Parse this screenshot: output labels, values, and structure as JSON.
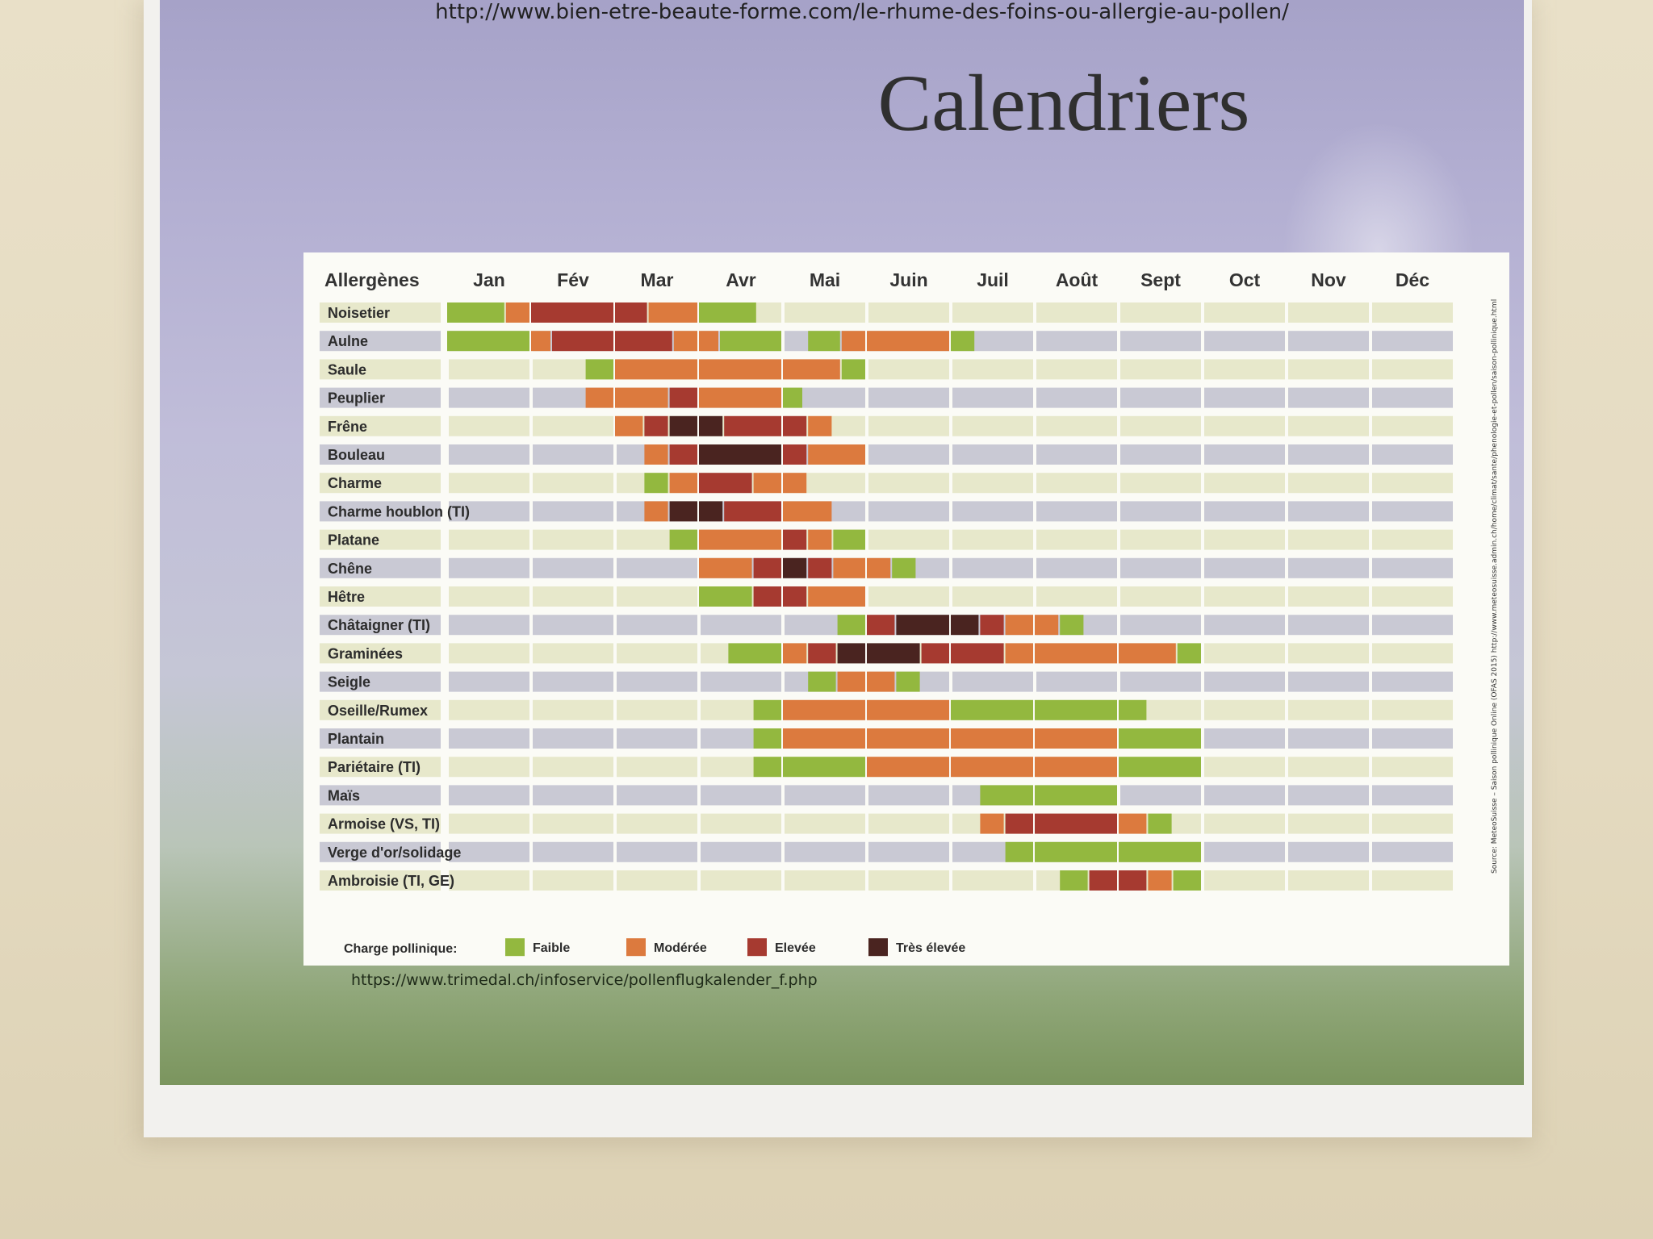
{
  "poster": {
    "source_top": "http://www.bien-etre-beaute-forme.com/le-rhume-des-foins-ou-allergie-au-pollen/",
    "title": "Calendriers",
    "source_bottom": "https://www.trimedal.ch/infoservice/pollenflugkalender_f.php",
    "side_note": "Source: MeteoSuisse – Saison pollinique Online (OFAS 2015) http://www.meteosuisse.admin.ch/home/climat/sante/phenologie-et-pollen/saison-pollinique.html"
  },
  "colors": {
    "faible": "#93b83f",
    "moderee": "#dc7a3e",
    "elevee": "#a63a30",
    "tres_elevee": "#4a2420",
    "row_light": "#e7e8cb",
    "row_grey": "#c9c9d4"
  },
  "chart_data": {
    "type": "table",
    "corner_label": "Allergènes",
    "months": [
      "Jan",
      "Fév",
      "Mar",
      "Avr",
      "Mai",
      "Juin",
      "Juil",
      "Août",
      "Sept",
      "Oct",
      "Nov",
      "Déc"
    ],
    "legend": {
      "title": "Charge pollinique:",
      "levels": [
        {
          "key": "F",
          "label": "Faible"
        },
        {
          "key": "M",
          "label": "Modérée"
        },
        {
          "key": "E",
          "label": "Elevée"
        },
        {
          "key": "T",
          "label": "Très élevée"
        }
      ]
    },
    "rows": [
      {
        "name": "Noisetier",
        "segments": [
          [
            0,
            0.7,
            "F"
          ],
          [
            0.7,
            1.0,
            "M"
          ],
          [
            1.0,
            2.0,
            "E"
          ],
          [
            2.0,
            2.4,
            "E"
          ],
          [
            2.4,
            3.0,
            "M"
          ],
          [
            3.0,
            3.7,
            "F"
          ]
        ]
      },
      {
        "name": "Aulne",
        "segments": [
          [
            0,
            1.0,
            "F"
          ],
          [
            1.0,
            1.25,
            "M"
          ],
          [
            1.25,
            2.0,
            "E"
          ],
          [
            2.0,
            2.7,
            "E"
          ],
          [
            2.7,
            3.0,
            "M"
          ],
          [
            3.0,
            3.25,
            "M"
          ],
          [
            3.25,
            4.0,
            "F"
          ],
          [
            4.3,
            4.7,
            "F"
          ],
          [
            4.7,
            5.0,
            "M"
          ],
          [
            5.0,
            6.0,
            "M"
          ],
          [
            6.0,
            6.3,
            "F"
          ]
        ]
      },
      {
        "name": "Saule",
        "segments": [
          [
            1.65,
            2.0,
            "F"
          ],
          [
            2.0,
            3.0,
            "M"
          ],
          [
            3.0,
            4.0,
            "M"
          ],
          [
            4.0,
            4.7,
            "M"
          ],
          [
            4.7,
            5.0,
            "F"
          ]
        ]
      },
      {
        "name": "Peuplier",
        "segments": [
          [
            1.65,
            2.0,
            "M"
          ],
          [
            2.0,
            2.65,
            "M"
          ],
          [
            2.65,
            3.0,
            "E"
          ],
          [
            3.0,
            4.0,
            "M"
          ],
          [
            4.0,
            4.25,
            "F"
          ]
        ]
      },
      {
        "name": "Frêne",
        "segments": [
          [
            2.0,
            2.35,
            "M"
          ],
          [
            2.35,
            2.65,
            "E"
          ],
          [
            2.65,
            3.0,
            "T"
          ],
          [
            3.0,
            3.3,
            "T"
          ],
          [
            3.3,
            4.0,
            "E"
          ],
          [
            4.0,
            4.3,
            "E"
          ],
          [
            4.3,
            4.6,
            "M"
          ]
        ]
      },
      {
        "name": "Bouleau",
        "segments": [
          [
            2.35,
            2.65,
            "M"
          ],
          [
            2.65,
            3.0,
            "E"
          ],
          [
            3.0,
            4.0,
            "T"
          ],
          [
            4.0,
            4.3,
            "E"
          ],
          [
            4.3,
            5.0,
            "M"
          ]
        ]
      },
      {
        "name": "Charme",
        "segments": [
          [
            2.35,
            2.65,
            "F"
          ],
          [
            2.65,
            3.0,
            "M"
          ],
          [
            3.0,
            3.65,
            "E"
          ],
          [
            3.65,
            4.0,
            "M"
          ],
          [
            4.0,
            4.3,
            "M"
          ]
        ]
      },
      {
        "name": "Charme houblon (TI)",
        "segments": [
          [
            2.35,
            2.65,
            "M"
          ],
          [
            2.65,
            3.0,
            "T"
          ],
          [
            3.0,
            3.3,
            "T"
          ],
          [
            3.3,
            4.0,
            "E"
          ],
          [
            4.0,
            4.6,
            "M"
          ]
        ]
      },
      {
        "name": "Platane",
        "segments": [
          [
            2.65,
            3.0,
            "F"
          ],
          [
            3.0,
            4.0,
            "M"
          ],
          [
            4.0,
            4.3,
            "E"
          ],
          [
            4.3,
            4.6,
            "M"
          ],
          [
            4.6,
            5.0,
            "F"
          ]
        ]
      },
      {
        "name": "Chêne",
        "segments": [
          [
            3.0,
            3.65,
            "M"
          ],
          [
            3.65,
            4.0,
            "E"
          ],
          [
            4.0,
            4.3,
            "T"
          ],
          [
            4.3,
            4.6,
            "E"
          ],
          [
            4.6,
            5.0,
            "M"
          ],
          [
            5.0,
            5.3,
            "M"
          ],
          [
            5.3,
            5.6,
            "F"
          ]
        ]
      },
      {
        "name": "Hêtre",
        "segments": [
          [
            3.0,
            3.65,
            "F"
          ],
          [
            3.65,
            4.0,
            "E"
          ],
          [
            4.0,
            4.3,
            "E"
          ],
          [
            4.3,
            5.0,
            "M"
          ]
        ]
      },
      {
        "name": "Châtaigner (TI)",
        "segments": [
          [
            4.65,
            5.0,
            "F"
          ],
          [
            5.0,
            5.35,
            "E"
          ],
          [
            5.35,
            6.0,
            "T"
          ],
          [
            6.0,
            6.35,
            "T"
          ],
          [
            6.35,
            6.65,
            "E"
          ],
          [
            6.65,
            7.0,
            "M"
          ],
          [
            7.0,
            7.3,
            "M"
          ],
          [
            7.3,
            7.6,
            "F"
          ]
        ]
      },
      {
        "name": "Graminées",
        "segments": [
          [
            3.35,
            4.0,
            "F"
          ],
          [
            4.0,
            4.3,
            "M"
          ],
          [
            4.3,
            4.65,
            "E"
          ],
          [
            4.65,
            5.0,
            "T"
          ],
          [
            5.0,
            5.65,
            "T"
          ],
          [
            5.65,
            6.0,
            "E"
          ],
          [
            6.0,
            6.65,
            "E"
          ],
          [
            6.65,
            7.0,
            "M"
          ],
          [
            7.0,
            8.0,
            "M"
          ],
          [
            8.0,
            8.7,
            "M"
          ],
          [
            8.7,
            9.0,
            "F"
          ]
        ]
      },
      {
        "name": "Seigle",
        "segments": [
          [
            4.3,
            4.65,
            "F"
          ],
          [
            4.65,
            5.0,
            "M"
          ],
          [
            5.0,
            5.35,
            "M"
          ],
          [
            5.35,
            5.65,
            "F"
          ]
        ]
      },
      {
        "name": "Oseille/Rumex",
        "segments": [
          [
            3.65,
            4.0,
            "F"
          ],
          [
            4.0,
            5.0,
            "M"
          ],
          [
            5.0,
            6.0,
            "M"
          ],
          [
            6.0,
            7.0,
            "F"
          ],
          [
            7.0,
            8.0,
            "F"
          ],
          [
            8.0,
            8.35,
            "F"
          ]
        ]
      },
      {
        "name": "Plantain",
        "segments": [
          [
            3.65,
            4.0,
            "F"
          ],
          [
            4.0,
            5.0,
            "M"
          ],
          [
            5.0,
            6.0,
            "M"
          ],
          [
            6.0,
            7.0,
            "M"
          ],
          [
            7.0,
            8.0,
            "M"
          ],
          [
            8.0,
            9.0,
            "F"
          ]
        ]
      },
      {
        "name": "Pariétaire (TI)",
        "segments": [
          [
            3.65,
            4.0,
            "F"
          ],
          [
            4.0,
            5.0,
            "F"
          ],
          [
            5.0,
            6.0,
            "M"
          ],
          [
            6.0,
            7.0,
            "M"
          ],
          [
            7.0,
            8.0,
            "M"
          ],
          [
            8.0,
            9.0,
            "F"
          ]
        ]
      },
      {
        "name": "Maïs",
        "segments": [
          [
            6.35,
            7.0,
            "F"
          ],
          [
            7.0,
            8.0,
            "F"
          ]
        ]
      },
      {
        "name": "Armoise (VS, TI)",
        "segments": [
          [
            6.35,
            6.65,
            "M"
          ],
          [
            6.65,
            7.0,
            "E"
          ],
          [
            7.0,
            8.0,
            "E"
          ],
          [
            8.0,
            8.35,
            "M"
          ],
          [
            8.35,
            8.65,
            "F"
          ]
        ]
      },
      {
        "name": "Verge d'or/solidage",
        "segments": [
          [
            6.65,
            7.0,
            "F"
          ],
          [
            7.0,
            8.0,
            "F"
          ],
          [
            8.0,
            9.0,
            "F"
          ]
        ]
      },
      {
        "name": "Ambroisie (TI, GE)",
        "segments": [
          [
            7.3,
            7.65,
            "F"
          ],
          [
            7.65,
            8.0,
            "E"
          ],
          [
            8.0,
            8.35,
            "E"
          ],
          [
            8.35,
            8.65,
            "M"
          ],
          [
            8.65,
            9.0,
            "F"
          ]
        ]
      }
    ]
  }
}
